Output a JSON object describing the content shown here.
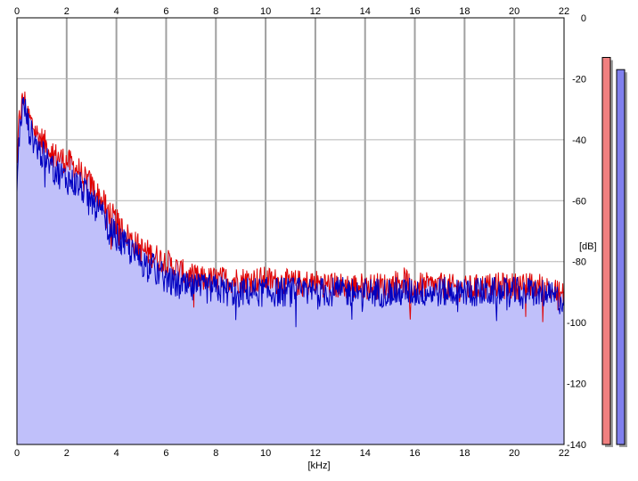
{
  "chart_data": {
    "type": "line",
    "xlabel": "[kHz]",
    "ylabel": "[dB]",
    "xlim": [
      0,
      22
    ],
    "ylim": [
      -140,
      0
    ],
    "x_ticks": [
      0,
      2,
      4,
      6,
      8,
      10,
      12,
      14,
      16,
      18,
      20,
      22
    ],
    "y_ticks": [
      0,
      -20,
      -40,
      -60,
      -80,
      -100,
      -120,
      -140
    ],
    "grid": true,
    "series": [
      {
        "color": "#e00000",
        "x": [
          0,
          0.1,
          0.2,
          0.3,
          0.5,
          0.8,
          1.0,
          1.5,
          2.0,
          2.5,
          3.0,
          3.5,
          4.0,
          4.5,
          5.0,
          5.5,
          6.0,
          6.5,
          7,
          7.5,
          8,
          8.5,
          9,
          9.5,
          10,
          11,
          12,
          13,
          14,
          15,
          15.5,
          16,
          17,
          18,
          19,
          20,
          21,
          22
        ],
        "values": [
          -45,
          -33,
          -28,
          -27,
          -33,
          -38,
          -40,
          -45,
          -47,
          -50,
          -55,
          -61,
          -67,
          -72,
          -76,
          -78,
          -80,
          -83,
          -85,
          -86,
          -86,
          -86,
          -86,
          -86,
          -86,
          -87,
          -87,
          -88,
          -88,
          -88,
          -86,
          -88,
          -88,
          -89,
          -88,
          -88,
          -88,
          -91
        ]
      },
      {
        "color": "#0000c0",
        "x": [
          0,
          0.1,
          0.2,
          0.3,
          0.5,
          0.8,
          1.0,
          1.5,
          2.0,
          2.5,
          3.0,
          3.5,
          4.0,
          4.5,
          5.0,
          5.5,
          6.0,
          6.5,
          7,
          7.5,
          8,
          8.5,
          9,
          9.5,
          10,
          11,
          12,
          13,
          14,
          15,
          15.5,
          16,
          17,
          18,
          19,
          20,
          21,
          22
        ],
        "values": [
          -55,
          -38,
          -30,
          -29,
          -37,
          -42,
          -45,
          -50,
          -53,
          -55,
          -60,
          -66,
          -72,
          -76,
          -80,
          -82,
          -86,
          -88,
          -89,
          -89,
          -89,
          -90,
          -90,
          -90,
          -90,
          -90,
          -90,
          -90,
          -90,
          -90,
          -90,
          -90,
          -90,
          -90,
          -90,
          -90,
          -90,
          -93
        ]
      }
    ],
    "fill_color": "#c0c0fa",
    "level_meters": [
      {
        "color": "#f08080",
        "level_db": -13
      },
      {
        "color": "#8080ee",
        "level_db": -17
      }
    ]
  }
}
